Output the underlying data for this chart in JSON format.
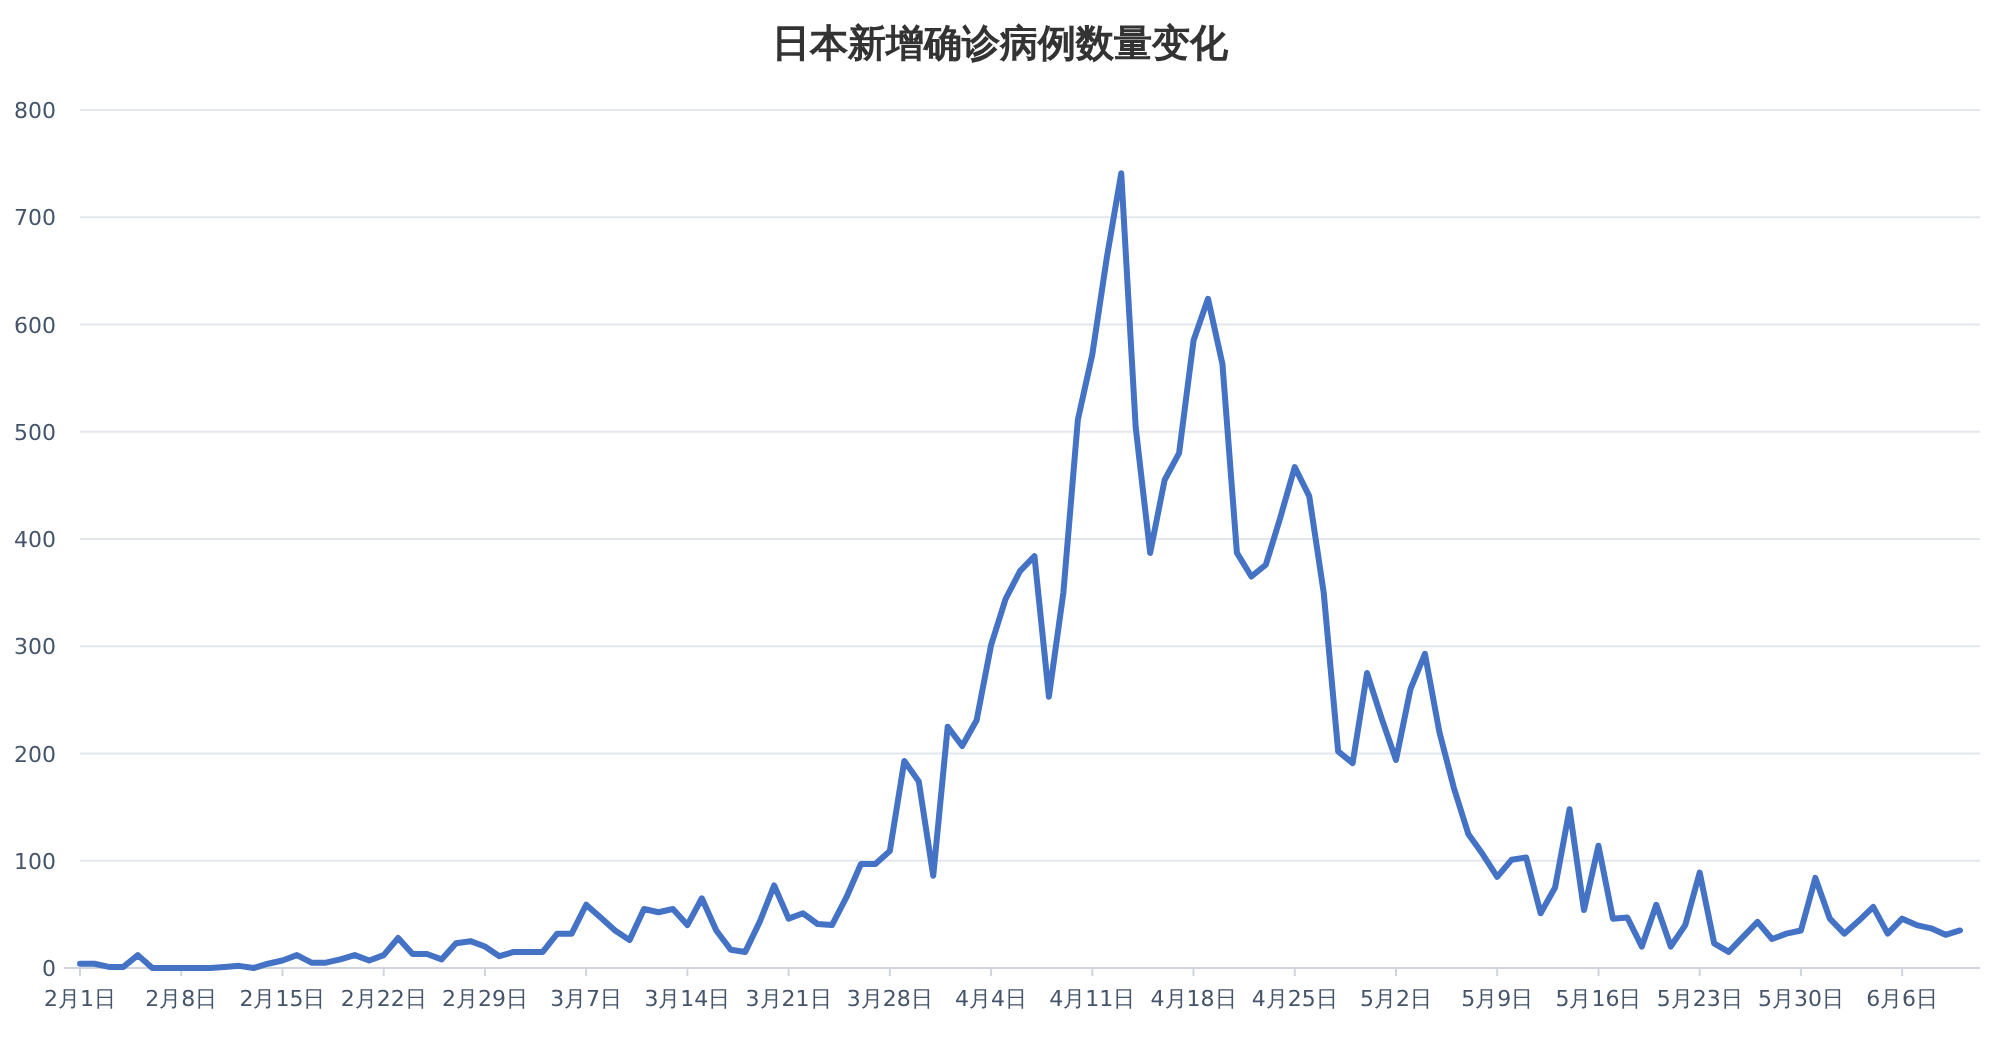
{
  "chart_data": {
    "type": "line",
    "title": "日本新增确诊病例数量变化",
    "categories": [
      "2月1日",
      null,
      null,
      null,
      null,
      null,
      null,
      "2月8日",
      null,
      null,
      null,
      null,
      null,
      null,
      "2月15日",
      null,
      null,
      null,
      null,
      null,
      null,
      "2月22日",
      null,
      null,
      null,
      null,
      null,
      null,
      "2月29日",
      null,
      null,
      null,
      null,
      null,
      null,
      "3月7日",
      null,
      null,
      null,
      null,
      null,
      null,
      "3月14日",
      null,
      null,
      null,
      null,
      null,
      null,
      "3月21日",
      null,
      null,
      null,
      null,
      null,
      null,
      "3月28日",
      null,
      null,
      null,
      null,
      null,
      null,
      "4月4日",
      null,
      null,
      null,
      null,
      null,
      null,
      "4月11日",
      null,
      null,
      null,
      null,
      null,
      null,
      "4月18日",
      null,
      null,
      null,
      null,
      null,
      null,
      "4月25日",
      null,
      null,
      null,
      null,
      null,
      null,
      "5月2日",
      null,
      null,
      null,
      null,
      null,
      null,
      "5月9日",
      null,
      null,
      null,
      null,
      null,
      null,
      "5月16日",
      null,
      null,
      null,
      null,
      null,
      null,
      "5月23日",
      null,
      null,
      null,
      null,
      null,
      null,
      "5月30日",
      null,
      null,
      null,
      null,
      null,
      null,
      "6月6日",
      null,
      null,
      null,
      null
    ],
    "values": [
      4,
      4,
      1,
      1,
      12,
      0,
      0,
      0,
      0,
      0,
      1,
      2,
      0,
      4,
      7,
      12,
      5,
      5,
      8,
      12,
      7,
      12,
      28,
      13,
      13,
      8,
      23,
      25,
      20,
      11,
      15,
      15,
      15,
      32,
      32,
      59,
      47,
      35,
      26,
      55,
      52,
      55,
      40,
      65,
      35,
      17,
      15,
      43,
      77,
      46,
      51,
      41,
      40,
      66,
      97,
      97,
      109,
      193,
      174,
      86,
      225,
      207,
      231,
      301,
      344,
      370,
      384,
      253,
      350,
      511,
      572,
      662,
      741,
      504,
      387,
      455,
      480,
      585,
      624,
      563,
      387,
      365,
      376,
      420,
      467,
      440,
      350,
      202,
      191,
      275,
      233,
      194,
      260,
      293,
      220,
      168,
      125,
      106,
      85,
      101,
      103,
      51,
      75,
      148,
      54,
      114,
      46,
      47,
      20,
      59,
      20,
      40,
      89,
      23,
      15,
      29,
      43,
      27,
      32,
      35,
      84,
      46,
      32,
      44,
      57,
      32,
      46,
      40,
      37,
      31,
      35
    ],
    "color": "#4472c4",
    "ylim": [
      0,
      800
    ],
    "yticks": [
      0,
      100,
      200,
      300,
      400,
      500,
      600,
      700,
      800
    ],
    "grid": "y",
    "line_style": "solid",
    "marker": "none"
  }
}
